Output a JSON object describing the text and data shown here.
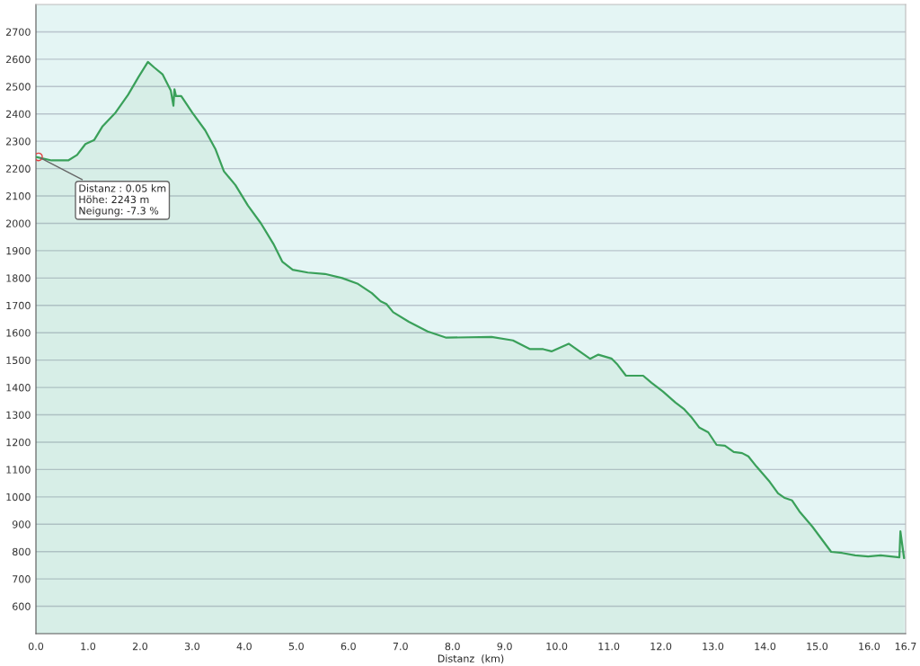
{
  "chart_data": {
    "type": "area",
    "xlabel": "Distanz  (km)",
    "x": [
      0,
      0.3,
      0.62,
      0.79,
      0.95,
      1.12,
      1.28,
      1.53,
      1.77,
      1.97,
      2.15,
      2.27,
      2.43,
      2.59,
      2.64,
      2.66,
      2.69,
      2.79,
      3.0,
      3.25,
      3.45,
      3.61,
      3.83,
      4.07,
      4.32,
      4.56,
      4.73,
      4.93,
      5.22,
      5.55,
      5.88,
      6.17,
      6.45,
      6.62,
      6.73,
      6.86,
      7.16,
      7.52,
      7.88,
      8.75,
      9.16,
      9.49,
      9.74,
      9.9,
      10.23,
      10.34,
      10.64,
      10.8,
      11.05,
      11.17,
      11.33,
      11.66,
      11.82,
      12.04,
      12.28,
      12.45,
      12.58,
      12.74,
      12.91,
      13.07,
      13.23,
      13.4,
      13.56,
      13.68,
      13.84,
      14.09,
      14.25,
      14.38,
      14.52,
      14.66,
      14.91,
      15.27,
      15.48,
      15.73,
      15.98,
      16.22,
      16.58,
      16.6,
      16.67
    ],
    "series": [
      {
        "color": "#3aa05a",
        "values": [
          2243,
          2230,
          2230,
          2250,
          2290,
          2305,
          2355,
          2405,
          2470,
          2535,
          2590,
          2570,
          2545,
          2485,
          2430,
          2490,
          2465,
          2465,
          2405,
          2340,
          2270,
          2190,
          2140,
          2065,
          2000,
          1925,
          1860,
          1830,
          1820,
          1815,
          1800,
          1780,
          1745,
          1715,
          1705,
          1675,
          1640,
          1605,
          1582,
          1585,
          1572,
          1540,
          1540,
          1532,
          1560,
          1545,
          1505,
          1520,
          1506,
          1483,
          1443,
          1443,
          1417,
          1385,
          1345,
          1320,
          1293,
          1253,
          1236,
          1190,
          1187,
          1164,
          1160,
          1148,
          1110,
          1055,
          1013,
          996,
          987,
          947,
          891,
          799,
          795,
          786,
          782,
          786,
          779,
          874,
          776
        ]
      }
    ],
    "xlim": [
      0,
      16.7
    ],
    "ylim": [
      500,
      2800
    ],
    "xticks": [
      {
        "value": 0,
        "label": "0.0"
      },
      {
        "value": 1,
        "label": "1.0"
      },
      {
        "value": 2,
        "label": "2.0"
      },
      {
        "value": 3,
        "label": "3.0"
      },
      {
        "value": 4,
        "label": "4.0"
      },
      {
        "value": 5,
        "label": "5.0"
      },
      {
        "value": 6,
        "label": "6.0"
      },
      {
        "value": 7,
        "label": "7.0"
      },
      {
        "value": 8,
        "label": "8.0"
      },
      {
        "value": 9,
        "label": "9.0"
      },
      {
        "value": 10,
        "label": "10.0"
      },
      {
        "value": 11,
        "label": "11.0"
      },
      {
        "value": 12,
        "label": "12.0"
      },
      {
        "value": 13,
        "label": "13.0"
      },
      {
        "value": 14,
        "label": "14.0"
      },
      {
        "value": 15,
        "label": "15.0"
      },
      {
        "value": 16,
        "label": "16.0"
      },
      {
        "value": 16.7,
        "label": "16.7"
      }
    ],
    "yticks": [
      600,
      700,
      800,
      900,
      1000,
      1100,
      1200,
      1300,
      1400,
      1500,
      1600,
      1700,
      1800,
      1900,
      2000,
      2100,
      2200,
      2300,
      2400,
      2500,
      2600,
      2700
    ],
    "grid": "y",
    "annotations": [
      {
        "text": "Distanz : 0.05 km\nHöhe: 2243 m\nNeigung: -7.3 %",
        "x": 0.05,
        "y": 2243
      }
    ]
  }
}
